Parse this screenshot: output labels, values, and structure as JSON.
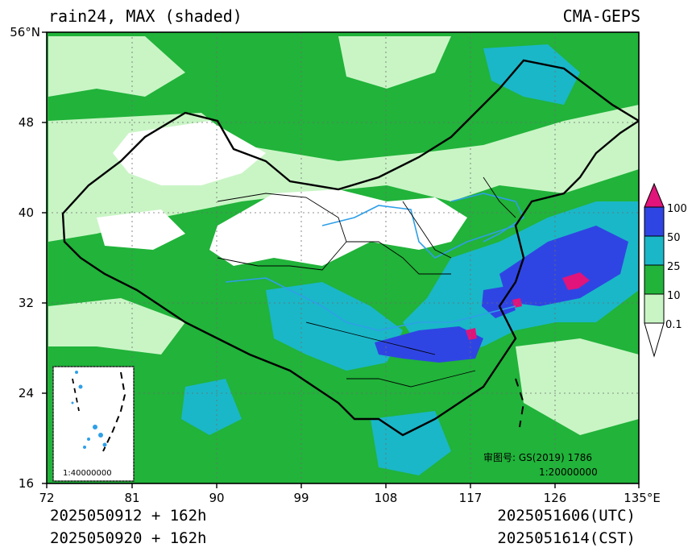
{
  "header": {
    "left_title": "rain24, MAX (shaded)",
    "right_title": "CMA-GEPS"
  },
  "axes": {
    "y_ticks": [
      "56°N",
      "48",
      "40",
      "32",
      "24",
      "16"
    ],
    "x_ticks": [
      "72",
      "81",
      "90",
      "99",
      "108",
      "117",
      "126",
      "135°E"
    ]
  },
  "legend": {
    "levels": [
      "100",
      "50",
      "25",
      "10",
      "0.1"
    ],
    "colors": {
      "extreme": "#e0147a",
      "heavy": "#2f45e3",
      "moderate": "#1ab7c8",
      "light": "#21b33a",
      "drizzle": "#c9f5c5",
      "none": "#ffffff"
    }
  },
  "map_notes": {
    "review_number": "审图号: GS(2019) 1786",
    "main_scale": "1:20000000",
    "inset_scale": "1:40000000"
  },
  "footer": {
    "init_utc": "2025050912 + 162h",
    "init_cst": "2025050920 + 162h",
    "valid_utc": "2025051606(UTC)",
    "valid_cst": "2025051614(CST)"
  }
}
